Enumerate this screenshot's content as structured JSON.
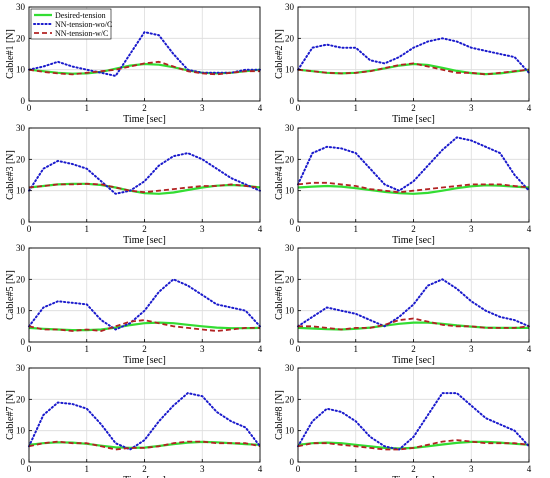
{
  "chart_data": {
    "type": "line",
    "layout": "4x2 grid of subplots",
    "legend": {
      "placement": "top-left of first subplot",
      "entries": [
        {
          "name": "Desired-tension",
          "color": "#33dd33",
          "style": "solid"
        },
        {
          "name": "NN-tension-wo/C",
          "color": "#1a1acc",
          "style": "dotted"
        },
        {
          "name": "NN-tension-w/C",
          "color": "#b22222",
          "style": "dashed"
        }
      ]
    },
    "colors": {
      "desired": "#33dd33",
      "wo": "#1a1acc",
      "w": "#b22222"
    },
    "subplots": [
      {
        "ylabel": "Cable#1 [N]",
        "xlabel": "Time [sec]",
        "xlim": [
          0,
          4
        ],
        "ylim": [
          0,
          30
        ],
        "xticks": [
          "0",
          "1",
          "2",
          "3",
          "4"
        ],
        "yticks": [
          "0",
          "10",
          "20",
          "30"
        ],
        "grid": true,
        "x": [
          0,
          0.25,
          0.5,
          0.75,
          1,
          1.25,
          1.5,
          1.75,
          2,
          2.25,
          2.5,
          2.75,
          3,
          3.25,
          3.5,
          3.75,
          4
        ],
        "series": [
          {
            "name": "Desired-tension",
            "values": [
              10,
              9.5,
              9,
              8.7,
              8.8,
              9.3,
              10.3,
              11.3,
              11.8,
              11.6,
              10.8,
              9.8,
              9,
              8.8,
              9,
              9.5,
              10
            ]
          },
          {
            "name": "NN-tension-wo/C",
            "values": [
              10,
              11,
              12.5,
              11,
              10,
              9,
              8,
              15,
              22,
              21,
              15,
              10,
              9,
              9,
              9,
              10,
              10
            ]
          },
          {
            "name": "NN-tension-w/C",
            "values": [
              10,
              9.3,
              8.8,
              8.5,
              9,
              9.5,
              10,
              11,
              12,
              12.5,
              11,
              9.5,
              8.8,
              8.5,
              9,
              9.5,
              9.5
            ]
          }
        ]
      },
      {
        "ylabel": "Cable#2 [N]",
        "xlabel": "Time [sec]",
        "xlim": [
          0,
          4
        ],
        "ylim": [
          0,
          30
        ],
        "xticks": [
          "0",
          "1",
          "2",
          "3",
          "4"
        ],
        "yticks": [
          "0",
          "10",
          "20",
          "30"
        ],
        "grid": true,
        "x": [
          0,
          0.25,
          0.5,
          0.75,
          1,
          1.25,
          1.5,
          1.75,
          2,
          2.25,
          2.5,
          2.75,
          3,
          3.25,
          3.5,
          3.75,
          4
        ],
        "series": [
          {
            "name": "Desired-tension",
            "values": [
              10,
              9.5,
              9,
              8.8,
              9,
              9.6,
              10.4,
              11.3,
              11.8,
              11.5,
              10.6,
              9.6,
              8.9,
              8.6,
              8.8,
              9.4,
              10
            ]
          },
          {
            "name": "NN-tension-wo/C",
            "values": [
              10,
              17,
              18,
              17,
              17,
              13,
              12,
              14,
              17,
              19,
              20,
              19,
              17,
              16,
              15,
              14,
              9
            ]
          },
          {
            "name": "NN-tension-w/C",
            "values": [
              10,
              9.5,
              9,
              8.8,
              9,
              9.5,
              10.5,
              11.5,
              12,
              11,
              10,
              9,
              9,
              8.5,
              9,
              9.5,
              10
            ]
          }
        ]
      },
      {
        "ylabel": "Cable#3 [N]",
        "xlabel": "Time [sec]",
        "xlim": [
          0,
          4
        ],
        "ylim": [
          0,
          30
        ],
        "xticks": [
          "0",
          "1",
          "2",
          "3",
          "4"
        ],
        "yticks": [
          "0",
          "10",
          "20",
          "30"
        ],
        "grid": true,
        "x": [
          0,
          0.25,
          0.5,
          0.75,
          1,
          1.25,
          1.5,
          1.75,
          2,
          2.25,
          2.5,
          2.75,
          3,
          3.25,
          3.5,
          3.75,
          4
        ],
        "series": [
          {
            "name": "Desired-tension",
            "values": [
              11,
              11.5,
              12,
              12.2,
              12.2,
              11.8,
              11,
              10,
              9.2,
              9,
              9.4,
              10.2,
              11,
              11.6,
              11.8,
              11.6,
              11
            ]
          },
          {
            "name": "NN-tension-wo/C",
            "values": [
              10,
              17,
              19.5,
              18.5,
              17,
              13,
              9,
              10,
              13,
              18,
              21,
              22,
              20,
              17,
              14,
              12,
              10
            ]
          },
          {
            "name": "NN-tension-w/C",
            "values": [
              11,
              11.5,
              12,
              12,
              12.2,
              12,
              11,
              10,
              9.5,
              10,
              10.5,
              11,
              11.5,
              11.5,
              12,
              11.5,
              11
            ]
          }
        ]
      },
      {
        "ylabel": "Cable#4 [N]",
        "xlabel": "Time [sec]",
        "xlim": [
          0,
          4
        ],
        "ylim": [
          0,
          30
        ],
        "xticks": [
          "0",
          "1",
          "2",
          "3",
          "4"
        ],
        "yticks": [
          "0",
          "10",
          "20",
          "30"
        ],
        "grid": true,
        "x": [
          0,
          0.25,
          0.5,
          0.75,
          1,
          1.25,
          1.5,
          1.75,
          2,
          2.25,
          2.5,
          2.75,
          3,
          3.25,
          3.5,
          3.75,
          4
        ],
        "series": [
          {
            "name": "Desired-tension",
            "values": [
              11,
              11.3,
              11.5,
              11.3,
              10.8,
              10.2,
              9.6,
              9.2,
              9,
              9.3,
              10,
              10.8,
              11.4,
              11.7,
              11.6,
              11.3,
              11
            ]
          },
          {
            "name": "NN-tension-wo/C",
            "values": [
              12,
              22,
              24,
              23.5,
              22,
              17,
              12,
              10,
              13,
              18,
              23,
              27,
              26,
              24,
              22,
              15,
              10
            ]
          },
          {
            "name": "NN-tension-w/C",
            "values": [
              12,
              12.5,
              12.5,
              12,
              11.5,
              10.5,
              10,
              9.5,
              10,
              10.5,
              11,
              11.5,
              12,
              12,
              12,
              11.5,
              11
            ]
          }
        ]
      },
      {
        "ylabel": "Cable#5 [N]",
        "xlabel": "Time [sec]",
        "xlim": [
          0,
          4
        ],
        "ylim": [
          0,
          30
        ],
        "xticks": [
          "0",
          "1",
          "2",
          "3",
          "4"
        ],
        "yticks": [
          "0",
          "10",
          "20",
          "30"
        ],
        "grid": true,
        "x": [
          0,
          0.25,
          0.5,
          0.75,
          1,
          1.25,
          1.5,
          1.75,
          2,
          2.25,
          2.5,
          2.75,
          3,
          3.25,
          3.5,
          3.75,
          4
        ],
        "series": [
          {
            "name": "Desired-tension",
            "values": [
              4.5,
              4.2,
              4,
              3.8,
              3.8,
              4,
              4.6,
              5.4,
              6,
              6.2,
              6,
              5.5,
              5,
              4.6,
              4.4,
              4.4,
              4.5
            ]
          },
          {
            "name": "NN-tension-wo/C",
            "values": [
              5,
              11,
              13,
              12.5,
              12,
              7,
              4,
              6,
              10,
              16,
              20,
              18,
              15,
              12,
              11,
              10,
              5
            ]
          },
          {
            "name": "NN-tension-w/C",
            "values": [
              5,
              4,
              4,
              3.5,
              4,
              3.5,
              5,
              6.5,
              7,
              6,
              5,
              4.5,
              4,
              3.5,
              4,
              4.5,
              4.5
            ]
          }
        ]
      },
      {
        "ylabel": "Cable#6 [N]",
        "xlabel": "Time [sec]",
        "xlim": [
          0,
          4
        ],
        "ylim": [
          0,
          30
        ],
        "xticks": [
          "0",
          "1",
          "2",
          "3",
          "4"
        ],
        "yticks": [
          "0",
          "10",
          "20",
          "30"
        ],
        "grid": true,
        "x": [
          0,
          0.25,
          0.5,
          0.75,
          1,
          1.25,
          1.5,
          1.75,
          2,
          2.25,
          2.5,
          2.75,
          3,
          3.25,
          3.5,
          3.75,
          4
        ],
        "series": [
          {
            "name": "Desired-tension",
            "values": [
              4.5,
              4.3,
              4.1,
              4,
              4.2,
              4.6,
              5.2,
              5.8,
              6.2,
              6.2,
              5.8,
              5.3,
              4.9,
              4.6,
              4.5,
              4.5,
              4.5
            ]
          },
          {
            "name": "NN-tension-wo/C",
            "values": [
              5,
              8,
              11,
              10,
              9,
              7,
              5,
              8,
              12,
              18,
              20,
              17,
              13,
              10,
              8,
              7,
              5
            ]
          },
          {
            "name": "NN-tension-w/C",
            "values": [
              5,
              5,
              4.5,
              4,
              4.5,
              4.5,
              5.5,
              7,
              7.5,
              6.5,
              5.5,
              5,
              5,
              4.5,
              4.5,
              4.5,
              5
            ]
          }
        ]
      },
      {
        "ylabel": "Cable#7 [N]",
        "xlabel": "Time [sec]",
        "xlim": [
          0,
          4
        ],
        "ylim": [
          0,
          30
        ],
        "xticks": [
          "0",
          "1",
          "2",
          "3",
          "4"
        ],
        "yticks": [
          "0",
          "10",
          "20",
          "30"
        ],
        "grid": true,
        "x": [
          0,
          0.25,
          0.5,
          0.75,
          1,
          1.25,
          1.5,
          1.75,
          2,
          2.25,
          2.5,
          2.75,
          3,
          3.25,
          3.5,
          3.75,
          4
        ],
        "series": [
          {
            "name": "Desired-tension",
            "values": [
              5.5,
              6,
              6.3,
              6.2,
              5.8,
              5.2,
              4.7,
              4.5,
              4.6,
              5.1,
              5.7,
              6.2,
              6.4,
              6.3,
              6,
              5.7,
              5.5
            ]
          },
          {
            "name": "NN-tension-wo/C",
            "values": [
              5,
              15,
              19,
              18.5,
              17,
              12,
              6,
              4,
              7,
              13,
              18,
              22,
              21,
              16,
              13,
              11,
              5
            ]
          },
          {
            "name": "NN-tension-w/C",
            "values": [
              5,
              6,
              6.5,
              6,
              6,
              5,
              4,
              4.5,
              4.5,
              5,
              6,
              6.5,
              6.5,
              6,
              6,
              6,
              5
            ]
          }
        ]
      },
      {
        "ylabel": "Cable#8 [N]",
        "xlabel": "Time [sec]",
        "xlim": [
          0,
          4
        ],
        "ylim": [
          0,
          30
        ],
        "xticks": [
          "0",
          "1",
          "2",
          "3",
          "4"
        ],
        "yticks": [
          "0",
          "10",
          "20",
          "30"
        ],
        "grid": true,
        "x": [
          0,
          0.25,
          0.5,
          0.75,
          1,
          1.25,
          1.5,
          1.75,
          2,
          2.25,
          2.5,
          2.75,
          3,
          3.25,
          3.5,
          3.75,
          4
        ],
        "series": [
          {
            "name": "Desired-tension",
            "values": [
              5.5,
              6,
              6.2,
              6,
              5.5,
              5,
              4.5,
              4.3,
              4.5,
              5,
              5.6,
              6.1,
              6.4,
              6.4,
              6.2,
              5.8,
              5.5
            ]
          },
          {
            "name": "NN-tension-wo/C",
            "values": [
              5,
              13,
              17,
              16,
              13,
              8,
              5,
              4,
              8,
              15,
              22,
              22,
              18,
              14,
              12,
              10,
              5
            ]
          },
          {
            "name": "NN-tension-w/C",
            "values": [
              5,
              6,
              6,
              5.5,
              5,
              4.5,
              4,
              4,
              4.5,
              5.5,
              6.5,
              7,
              6.5,
              6,
              6,
              6,
              5.5
            ]
          }
        ]
      }
    ]
  }
}
